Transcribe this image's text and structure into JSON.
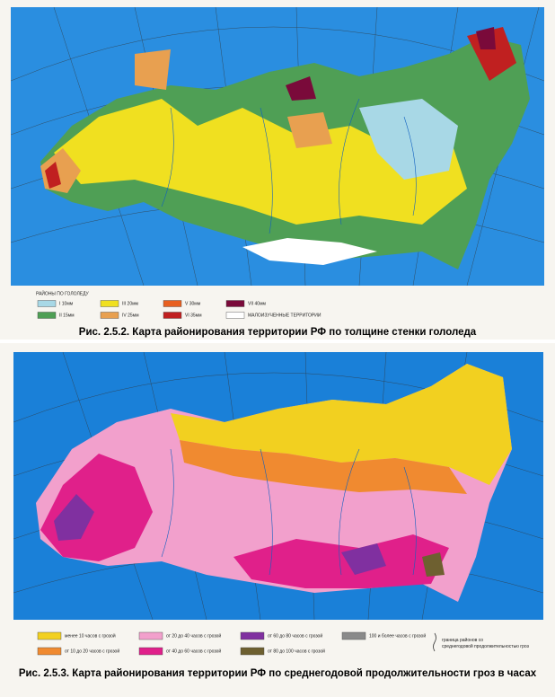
{
  "figures": [
    {
      "legend_title": "РАЙОНЫ ПО ГОЛОЛЕДУ",
      "legend": [
        {
          "label": "I   10мм",
          "color": "#a8d8e6"
        },
        {
          "label": "II   15мм",
          "color": "#4f9f55"
        },
        {
          "label": "III  20мм",
          "color": "#f0e020"
        },
        {
          "label": "IV   25мм",
          "color": "#e8a050"
        },
        {
          "label": "V   30мм",
          "color": "#e86020"
        },
        {
          "label": "VI   35мм",
          "color": "#c02020"
        },
        {
          "label": "VII   40мм",
          "color": "#7a0a3a"
        },
        {
          "label": "МАЛОИЗУЧЕННЫЕ ТЕРРИТОРИИ",
          "color": "#ffffff"
        }
      ],
      "caption": "Рис. 2.5.2. Карта районирования территории РФ по толщине стенки гололеда"
    },
    {
      "legend": [
        {
          "label": "менее 10 часов с грозой",
          "color": "#f2d020"
        },
        {
          "label": "от 10 до 20 часов с грозой",
          "color": "#f08a30"
        },
        {
          "label": "от 20 до 40 часов с грозой",
          "color": "#f2a0cc"
        },
        {
          "label": "от 40 до 60 часов с грозой",
          "color": "#e0208a"
        },
        {
          "label": "от 60 до 80 часов с грозой",
          "color": "#8030a0"
        },
        {
          "label": "от 80 до 100 часов с грозой",
          "color": "#6e6030"
        },
        {
          "label": "100 и более часов с грозой",
          "color": "#8a8a8a"
        }
      ],
      "boundary_note": "граница районов со среднегодовой продолжительностью гроз",
      "caption": "Рис. 2.5.3. Карта районирования территории РФ по среднегодовой продолжительности гроз в часах"
    }
  ]
}
